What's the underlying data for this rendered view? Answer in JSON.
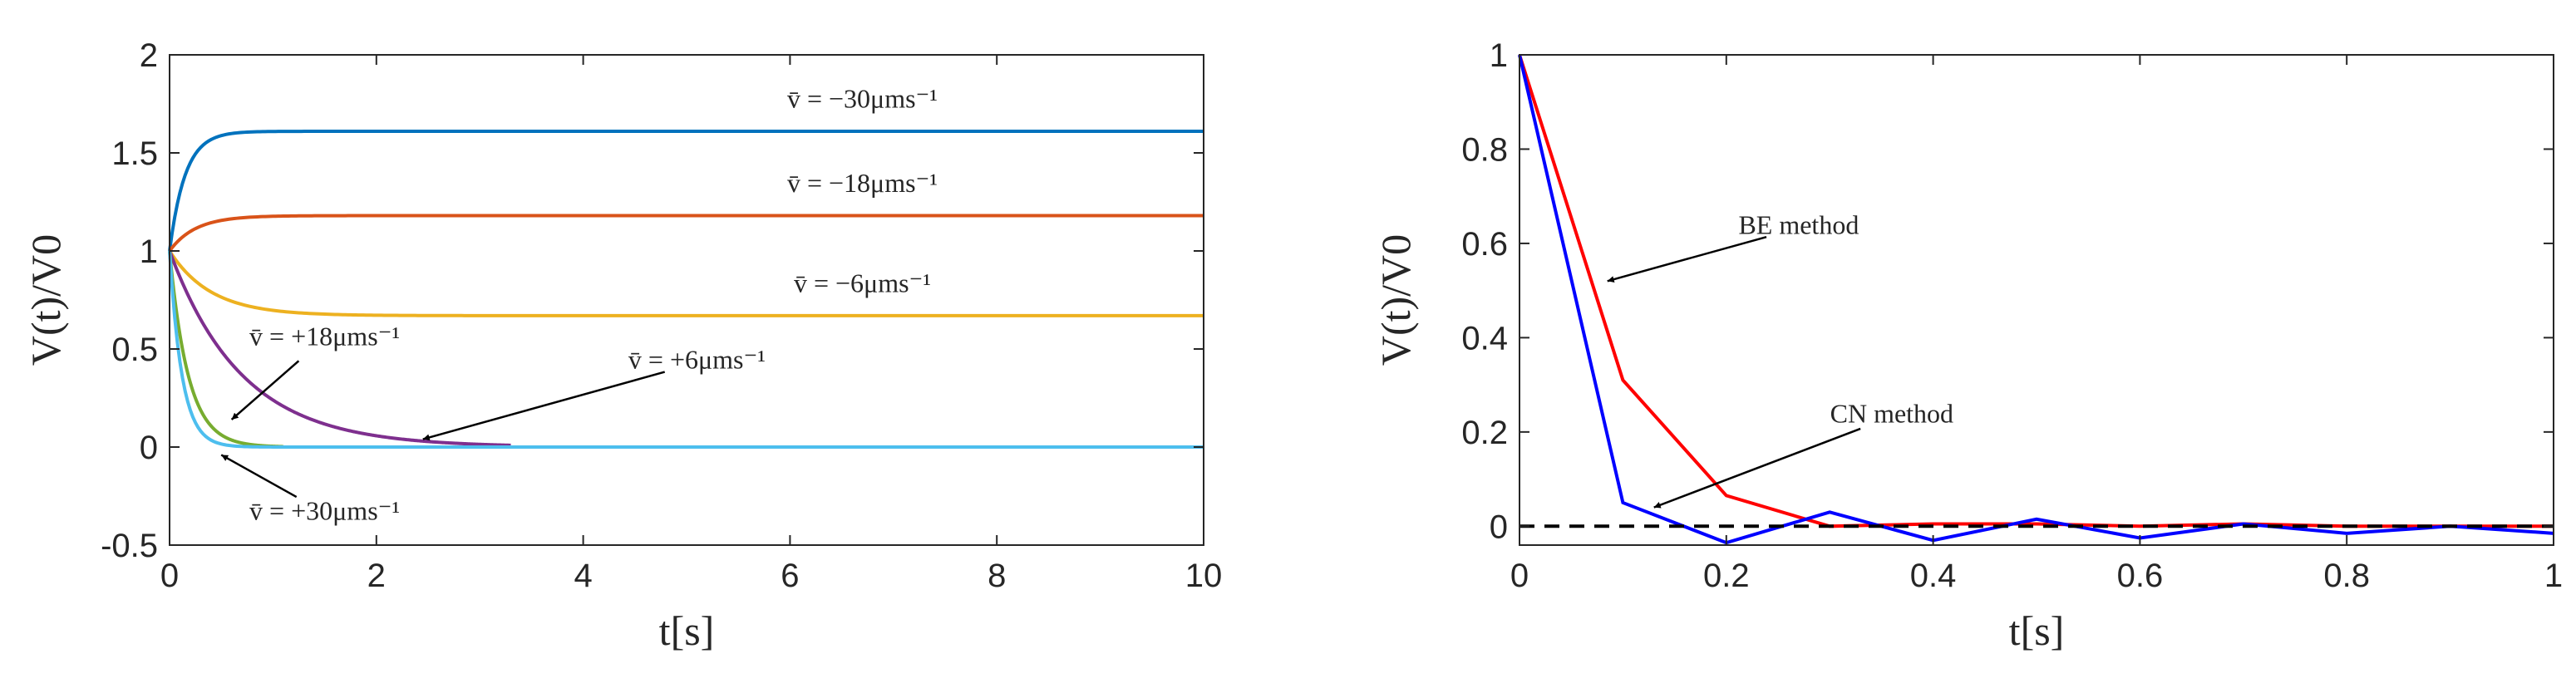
{
  "colors": {
    "axis": "#262626",
    "left_series": [
      "#0072BD",
      "#D95319",
      "#EDB120",
      "#7E2F8E",
      "#77AC30",
      "#4DBEEE"
    ],
    "be": "#FF0000",
    "cn": "#0000FF",
    "reference": "#000000"
  },
  "chart_data": [
    {
      "type": "line",
      "xlabel": "t[s]",
      "ylabel": "V(t)/V0",
      "xlim": [
        0,
        10
      ],
      "ylim": [
        -0.5,
        2
      ],
      "xticks": [
        0,
        2,
        4,
        6,
        8,
        10
      ],
      "yticks": [
        -0.5,
        0,
        0.5,
        1,
        1.5,
        2
      ],
      "xtick_labels": [
        "0",
        "2",
        "4",
        "6",
        "8",
        "10"
      ],
      "ytick_labels": [
        "-0.5",
        "0",
        "0.5",
        "1",
        "1.5",
        "2"
      ],
      "grid": false,
      "legend": "none",
      "series": [
        {
          "name": "v̄ = −30μms⁻¹",
          "steady": 1.61,
          "tau": 0.15
        },
        {
          "name": "v̄ = −18μms⁻¹",
          "steady": 1.18,
          "tau": 0.25
        },
        {
          "name": "v̄ = −6μms⁻¹",
          "steady": 0.67,
          "tau": 0.4
        },
        {
          "name": "v̄ = +6μms⁻¹",
          "steady": 0.0,
          "tau": 0.7,
          "end": 3.3
        },
        {
          "name": "v̄ = +18μms⁻¹",
          "steady": 0.0,
          "tau": 0.18,
          "end": 1.1
        },
        {
          "name": "v̄ = +30μms⁻¹",
          "steady": 0.0,
          "tau": 0.12
        }
      ],
      "annotations": [
        {
          "text": "v̄ = −30μms⁻¹",
          "x": 6.7,
          "y": 1.73
        },
        {
          "text": "v̄ = −18μms⁻¹",
          "x": 6.7,
          "y": 1.3
        },
        {
          "text": "v̄ = −6μms⁻¹",
          "x": 6.7,
          "y": 0.79
        },
        {
          "text": "v̄ = +18μms⁻¹",
          "x": 1.5,
          "y": 0.52,
          "arrow_to": [
            0.6,
            0.14
          ]
        },
        {
          "text": "v̄ = +6μms⁻¹",
          "x": 5.1,
          "y": 0.4,
          "arrow_to": [
            2.45,
            0.04
          ]
        },
        {
          "text": "v̄ = +30μms⁻¹",
          "x": 1.5,
          "y": -0.37,
          "arrow_to": [
            0.5,
            -0.04
          ]
        }
      ]
    },
    {
      "type": "line",
      "xlabel": "t[s]",
      "ylabel": "V(t)/V0",
      "xlim": [
        0,
        1
      ],
      "ylim": [
        -0.04,
        1
      ],
      "xticks": [
        0,
        0.2,
        0.4,
        0.6,
        0.8,
        1
      ],
      "yticks": [
        0,
        0.2,
        0.4,
        0.6,
        0.8,
        1
      ],
      "xtick_labels": [
        "0",
        "0.2",
        "0.4",
        "0.6",
        "0.8",
        "1"
      ],
      "ytick_labels": [
        "0",
        "0.2",
        "0.4",
        "0.6",
        "0.8",
        "1"
      ],
      "grid": false,
      "legend": "none",
      "x": [
        0,
        0.1,
        0.2,
        0.3,
        0.4,
        0.5,
        0.6,
        0.7,
        0.8,
        0.9,
        1.0
      ],
      "series": [
        {
          "values": [
            1.0,
            0.31,
            0.065,
            0.0,
            0.005,
            0.005,
            0.0,
            0.005,
            0.0,
            0.0,
            0.0
          ]
        },
        {
          "values": [
            1.0,
            0.05,
            -0.035,
            0.03,
            -0.03,
            0.015,
            -0.025,
            0.005,
            -0.015,
            0.0,
            -0.015
          ]
        },
        {
          "values": [
            0.0,
            0.0,
            0.0,
            0.0,
            0.0,
            0.0,
            0.0,
            0.0,
            0.0,
            0.0,
            0.0
          ],
          "dashed": true
        }
      ],
      "annotations": [
        {
          "text": "BE method",
          "x": 0.27,
          "y": 0.62,
          "arrow_to": [
            0.085,
            0.52
          ]
        },
        {
          "text": "CN method",
          "x": 0.36,
          "y": 0.22,
          "arrow_to": [
            0.13,
            0.04
          ]
        }
      ]
    }
  ]
}
